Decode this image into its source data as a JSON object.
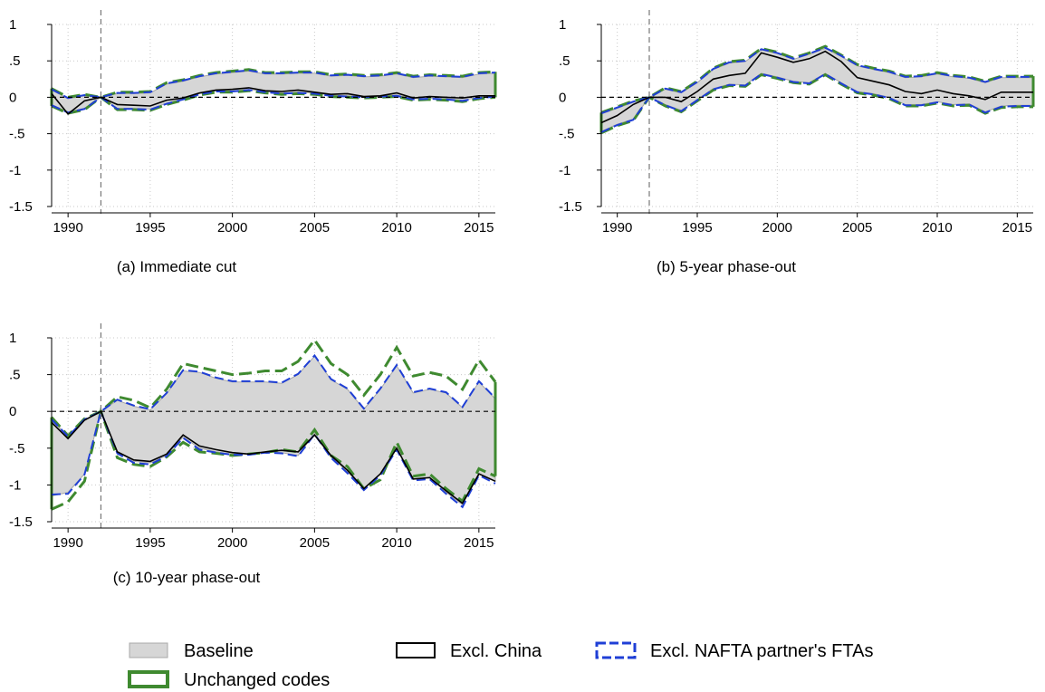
{
  "colors": {
    "band_fill": "#d6d6d6",
    "band_edge": "#a8a8a8",
    "excl_china": "#000000",
    "excl_nafta": "#1f3fd6",
    "unchanged": "#3f8a30"
  },
  "legend": {
    "baseline": "Baseline",
    "excl_china": "Excl. China",
    "excl_nafta": "Excl. NAFTA partner's FTAs",
    "unchanged": "Unchanged codes"
  },
  "chart_data": [
    {
      "type": "area",
      "caption": "(a) Immediate cut",
      "x": [
        1989,
        1990,
        1991,
        1992,
        1993,
        1994,
        1995,
        1996,
        1997,
        1998,
        1999,
        2000,
        2001,
        2002,
        2003,
        2004,
        2005,
        2006,
        2007,
        2008,
        2009,
        2010,
        2011,
        2012,
        2013,
        2014,
        2015,
        2016
      ],
      "xlim": [
        1989,
        2016
      ],
      "ylim": [
        -1.5,
        1
      ],
      "xticks": [
        1990,
        1995,
        2000,
        2005,
        2010,
        2015
      ],
      "xtick_labels": [
        "1990",
        "1995",
        "2000",
        "2005",
        "2010",
        "2015"
      ],
      "yticks": [
        1,
        0.5,
        0,
        -0.5,
        -1,
        -1.5
      ],
      "ytick_labels": [
        "1",
        ".5",
        "0",
        "-.5",
        "-1",
        "-1.5"
      ],
      "event_line_x": 1992,
      "zero_line": true,
      "grid": true,
      "series": [
        {
          "name": "Baseline",
          "kind": "band",
          "lower": [
            -0.1,
            -0.2,
            -0.15,
            0.0,
            -0.15,
            -0.15,
            -0.16,
            -0.08,
            -0.02,
            0.05,
            0.09,
            0.09,
            0.11,
            0.08,
            0.06,
            0.07,
            0.06,
            0.03,
            0.02,
            0.01,
            0.02,
            0.03,
            -0.02,
            -0.01,
            -0.02,
            -0.04,
            0.0,
            0.02
          ],
          "upper": [
            0.1,
            -0.02,
            0.02,
            0.0,
            0.05,
            0.05,
            0.06,
            0.18,
            0.22,
            0.28,
            0.32,
            0.34,
            0.36,
            0.32,
            0.32,
            0.33,
            0.33,
            0.29,
            0.3,
            0.28,
            0.29,
            0.32,
            0.27,
            0.29,
            0.28,
            0.27,
            0.32,
            0.33
          ]
        },
        {
          "name": "Excl. China",
          "kind": "line",
          "values": [
            0.05,
            -0.23,
            -0.05,
            0.0,
            -0.1,
            -0.11,
            -0.12,
            -0.04,
            -0.01,
            0.06,
            0.1,
            0.11,
            0.13,
            0.09,
            0.08,
            0.1,
            0.07,
            0.04,
            0.05,
            0.01,
            0.02,
            0.06,
            -0.01,
            0.01,
            0.0,
            -0.01,
            0.02,
            0.02
          ]
        },
        {
          "name": "Excl. NAFTA partner's FTAs",
          "kind": "band",
          "lower": [
            -0.11,
            -0.21,
            -0.16,
            0.0,
            -0.16,
            -0.16,
            -0.17,
            -0.09,
            -0.03,
            0.04,
            0.08,
            0.08,
            0.1,
            0.07,
            0.05,
            0.06,
            0.05,
            0.02,
            0.01,
            0.0,
            0.01,
            0.02,
            -0.03,
            -0.02,
            -0.03,
            -0.05,
            -0.01,
            0.01
          ],
          "upper": [
            0.11,
            -0.01,
            0.03,
            0.0,
            0.06,
            0.06,
            0.07,
            0.19,
            0.23,
            0.29,
            0.33,
            0.35,
            0.37,
            0.33,
            0.33,
            0.34,
            0.34,
            0.3,
            0.31,
            0.29,
            0.3,
            0.33,
            0.28,
            0.3,
            0.29,
            0.28,
            0.33,
            0.34
          ]
        },
        {
          "name": "Unchanged codes",
          "kind": "band",
          "lower": [
            -0.12,
            -0.22,
            -0.17,
            0.0,
            -0.17,
            -0.17,
            -0.18,
            -0.1,
            -0.04,
            0.03,
            0.07,
            0.07,
            0.09,
            0.06,
            0.04,
            0.05,
            0.04,
            0.01,
            0.0,
            -0.01,
            0.0,
            0.01,
            -0.04,
            -0.03,
            -0.04,
            -0.06,
            -0.02,
            0.0
          ],
          "upper": [
            0.12,
            0.0,
            0.04,
            0.0,
            0.07,
            0.07,
            0.08,
            0.2,
            0.24,
            0.3,
            0.34,
            0.36,
            0.38,
            0.34,
            0.34,
            0.35,
            0.35,
            0.31,
            0.32,
            0.3,
            0.31,
            0.34,
            0.29,
            0.31,
            0.3,
            0.29,
            0.34,
            0.35
          ]
        }
      ]
    },
    {
      "type": "area",
      "caption": "(b) 5-year phase-out",
      "x": [
        1989,
        1990,
        1991,
        1992,
        1993,
        1994,
        1995,
        1996,
        1997,
        1998,
        1999,
        2000,
        2001,
        2002,
        2003,
        2004,
        2005,
        2006,
        2007,
        2008,
        2009,
        2010,
        2011,
        2012,
        2013,
        2014,
        2015,
        2016
      ],
      "xlim": [
        1989,
        2016
      ],
      "ylim": [
        -1.5,
        1
      ],
      "xticks": [
        1990,
        1995,
        2000,
        2005,
        2010,
        2015
      ],
      "xtick_labels": [
        "1990",
        "1995",
        "2000",
        "2005",
        "2010",
        "2015"
      ],
      "yticks": [
        1,
        0.5,
        0,
        -0.5,
        -1,
        -1.5
      ],
      "ytick_labels": [
        "1",
        ".5",
        "0",
        "-.5",
        "-1",
        "-1.5"
      ],
      "event_line_x": 1992,
      "zero_line": true,
      "grid": true,
      "series": [
        {
          "name": "Baseline",
          "kind": "band",
          "lower": [
            -0.47,
            -0.37,
            -0.3,
            0.0,
            -0.1,
            -0.18,
            -0.03,
            0.12,
            0.18,
            0.17,
            0.33,
            0.28,
            0.22,
            0.2,
            0.33,
            0.2,
            0.08,
            0.05,
            0.0,
            -0.1,
            -0.1,
            -0.06,
            -0.1,
            -0.09,
            -0.2,
            -0.12,
            -0.11,
            -0.11
          ],
          "upper": [
            -0.23,
            -0.15,
            -0.07,
            0.0,
            0.11,
            0.06,
            0.2,
            0.38,
            0.47,
            0.49,
            0.65,
            0.6,
            0.52,
            0.59,
            0.67,
            0.56,
            0.43,
            0.38,
            0.34,
            0.27,
            0.28,
            0.32,
            0.28,
            0.26,
            0.2,
            0.27,
            0.27,
            0.27
          ]
        },
        {
          "name": "Excl. China",
          "kind": "line",
          "values": [
            -0.35,
            -0.25,
            -0.1,
            0.0,
            0.0,
            -0.06,
            0.08,
            0.25,
            0.3,
            0.33,
            0.61,
            0.55,
            0.48,
            0.53,
            0.63,
            0.49,
            0.27,
            0.22,
            0.17,
            0.08,
            0.05,
            0.1,
            0.05,
            0.02,
            -0.03,
            0.07,
            0.07,
            0.07
          ]
        },
        {
          "name": "Excl. NAFTA partner's FTAs",
          "kind": "band",
          "lower": [
            -0.48,
            -0.38,
            -0.31,
            0.0,
            -0.11,
            -0.19,
            -0.04,
            0.11,
            0.17,
            0.16,
            0.32,
            0.27,
            0.21,
            0.19,
            0.32,
            0.19,
            0.07,
            0.04,
            -0.01,
            -0.11,
            -0.11,
            -0.07,
            -0.11,
            -0.1,
            -0.21,
            -0.13,
            -0.12,
            -0.12
          ],
          "upper": [
            -0.22,
            -0.14,
            -0.06,
            0.0,
            0.12,
            0.07,
            0.21,
            0.39,
            0.48,
            0.5,
            0.66,
            0.61,
            0.53,
            0.6,
            0.68,
            0.57,
            0.44,
            0.39,
            0.35,
            0.28,
            0.29,
            0.33,
            0.29,
            0.27,
            0.21,
            0.28,
            0.28,
            0.28
          ]
        },
        {
          "name": "Unchanged codes",
          "kind": "band",
          "lower": [
            -0.49,
            -0.39,
            -0.32,
            0.0,
            -0.12,
            -0.2,
            -0.05,
            0.1,
            0.16,
            0.15,
            0.31,
            0.26,
            0.2,
            0.18,
            0.31,
            0.18,
            0.06,
            0.03,
            -0.02,
            -0.12,
            -0.12,
            -0.08,
            -0.12,
            -0.11,
            -0.22,
            -0.14,
            -0.13,
            -0.13
          ],
          "upper": [
            -0.21,
            -0.13,
            -0.05,
            0.0,
            0.13,
            0.08,
            0.22,
            0.4,
            0.49,
            0.51,
            0.67,
            0.62,
            0.54,
            0.61,
            0.7,
            0.58,
            0.45,
            0.4,
            0.36,
            0.29,
            0.3,
            0.34,
            0.3,
            0.28,
            0.22,
            0.29,
            0.29,
            0.29
          ]
        }
      ]
    },
    {
      "type": "area",
      "caption": "(c) 10-year phase-out",
      "x": [
        1989,
        1990,
        1991,
        1992,
        1993,
        1994,
        1995,
        1996,
        1997,
        1998,
        1999,
        2000,
        2001,
        2002,
        2003,
        2004,
        2005,
        2006,
        2007,
        2008,
        2009,
        2010,
        2011,
        2012,
        2013,
        2014,
        2015,
        2016
      ],
      "xlim": [
        1989,
        2016
      ],
      "ylim": [
        -1.5,
        1
      ],
      "xticks": [
        1990,
        1995,
        2000,
        2005,
        2010,
        2015
      ],
      "xtick_labels": [
        "1990",
        "1995",
        "2000",
        "2005",
        "2010",
        "2015"
      ],
      "yticks": [
        1,
        0.5,
        0,
        -0.5,
        -1,
        -1.5
      ],
      "ytick_labels": [
        "1",
        ".5",
        "0",
        "-.5",
        "-1",
        "-1.5"
      ],
      "event_line_x": 1992,
      "zero_line": true,
      "grid": true,
      "series": [
        {
          "name": "Baseline",
          "kind": "band",
          "lower": [
            -1.15,
            -1.1,
            -0.85,
            0.0,
            -0.55,
            -0.68,
            -0.7,
            -0.6,
            -0.35,
            -0.5,
            -0.55,
            -0.58,
            -0.58,
            -0.55,
            -0.56,
            -0.6,
            -0.3,
            -0.62,
            -0.82,
            -1.05,
            -0.85,
            -0.5,
            -0.92,
            -0.9,
            -1.1,
            -1.27,
            -0.85,
            -0.95
          ],
          "upper": [
            -0.1,
            -0.35,
            -0.12,
            0.0,
            0.15,
            0.07,
            0.02,
            0.24,
            0.55,
            0.53,
            0.45,
            0.4,
            0.4,
            0.4,
            0.38,
            0.5,
            0.75,
            0.43,
            0.3,
            0.03,
            0.3,
            0.62,
            0.25,
            0.3,
            0.25,
            0.05,
            0.4,
            0.17
          ]
        },
        {
          "name": "Excl. China",
          "kind": "line",
          "values": [
            -0.15,
            -0.37,
            -0.12,
            0.0,
            -0.55,
            -0.66,
            -0.68,
            -0.58,
            -0.32,
            -0.47,
            -0.52,
            -0.56,
            -0.58,
            -0.55,
            -0.53,
            -0.55,
            -0.32,
            -0.6,
            -0.8,
            -1.05,
            -0.85,
            -0.5,
            -0.92,
            -0.9,
            -1.08,
            -1.25,
            -0.85,
            -0.95
          ]
        },
        {
          "name": "Excl. NAFTA partner's FTAs",
          "kind": "band",
          "lower": [
            -1.13,
            -1.12,
            -0.86,
            0.0,
            -0.57,
            -0.7,
            -0.72,
            -0.61,
            -0.36,
            -0.52,
            -0.56,
            -0.59,
            -0.59,
            -0.56,
            -0.57,
            -0.61,
            -0.31,
            -0.63,
            -0.84,
            -1.07,
            -0.87,
            -0.52,
            -0.94,
            -0.92,
            -1.12,
            -1.3,
            -0.87,
            -0.98
          ],
          "upper": [
            -0.11,
            -0.34,
            -0.11,
            0.0,
            0.16,
            0.08,
            0.03,
            0.25,
            0.56,
            0.54,
            0.46,
            0.41,
            0.41,
            0.41,
            0.39,
            0.51,
            0.76,
            0.44,
            0.31,
            0.04,
            0.31,
            0.63,
            0.26,
            0.31,
            0.26,
            0.06,
            0.41,
            0.18
          ]
        },
        {
          "name": "Unchanged codes",
          "kind": "band",
          "lower": [
            -1.33,
            -1.23,
            -0.95,
            0.0,
            -0.63,
            -0.72,
            -0.75,
            -0.62,
            -0.42,
            -0.55,
            -0.57,
            -0.6,
            -0.58,
            -0.56,
            -0.52,
            -0.55,
            -0.25,
            -0.6,
            -0.75,
            -1.05,
            -0.93,
            -0.42,
            -0.88,
            -0.85,
            -1.05,
            -1.22,
            -0.78,
            -0.88
          ],
          "upper": [
            -0.08,
            -0.33,
            -0.1,
            0.0,
            0.2,
            0.15,
            0.05,
            0.3,
            0.65,
            0.6,
            0.55,
            0.5,
            0.52,
            0.55,
            0.55,
            0.68,
            0.97,
            0.65,
            0.5,
            0.22,
            0.5,
            0.87,
            0.48,
            0.53,
            0.48,
            0.3,
            0.7,
            0.4
          ]
        }
      ]
    }
  ]
}
